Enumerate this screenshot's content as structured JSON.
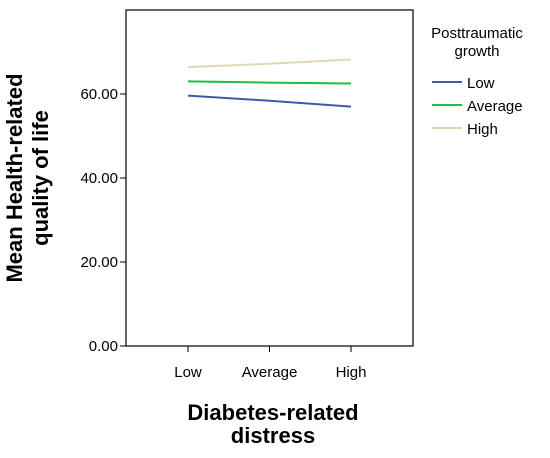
{
  "chart_data": {
    "type": "line",
    "title": "",
    "xlabel": [
      "Diabetes-related",
      "distress"
    ],
    "ylabel": [
      "Mean Health-related",
      "quality of life"
    ],
    "categories": [
      "Low",
      "Average",
      "High"
    ],
    "ylim": [
      0,
      80
    ],
    "yticks": [
      "0.00",
      "20.00",
      "40.00",
      "60.00"
    ],
    "ytick_values": [
      0,
      20,
      40,
      60
    ],
    "grid": false,
    "legend": {
      "title": [
        "Posttraumatic",
        "growth"
      ],
      "placement": "right"
    },
    "series": [
      {
        "name": "Low",
        "color": "#3b5ba8",
        "values": [
          59.6,
          58.4,
          57.0
        ]
      },
      {
        "name": "Average",
        "color": "#22bb44",
        "values": [
          63.0,
          62.7,
          62.5
        ]
      },
      {
        "name": "High",
        "color": "#e2d7b0",
        "values": [
          66.4,
          67.2,
          68.2
        ]
      }
    ]
  }
}
